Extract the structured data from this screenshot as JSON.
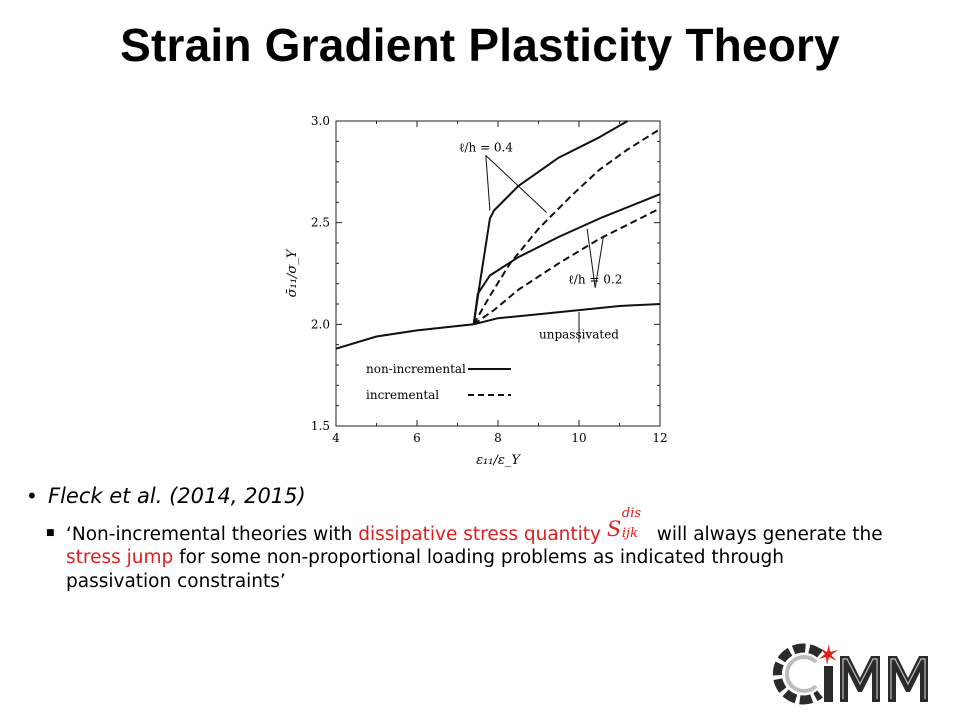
{
  "slide": {
    "title": "Strain Gradient Plasticity Theory"
  },
  "chart_data": {
    "type": "line",
    "xlabel": "ε₁₁/ε_Y",
    "ylabel": "σ̄₁₁/σ_Y",
    "xlim": [
      4,
      12
    ],
    "ylim": [
      1.5,
      3.0
    ],
    "xticks": [
      "4",
      "6",
      "8",
      "10",
      "12"
    ],
    "yticks": [
      "1.5",
      "2.0",
      "2.5",
      "3.0"
    ],
    "grid": false,
    "legend_position": "bottom-left",
    "legend": [
      {
        "label": "non-incremental",
        "style": "solid"
      },
      {
        "label": "incremental",
        "style": "dashed"
      }
    ],
    "series": [
      {
        "style": "solid",
        "points": [
          [
            4,
            1.88
          ],
          [
            5,
            1.94
          ],
          [
            6,
            1.97
          ],
          [
            7.4,
            2.0
          ],
          [
            8,
            2.03
          ],
          [
            9,
            2.05
          ],
          [
            10,
            2.07
          ],
          [
            11,
            2.09
          ],
          [
            12,
            2.1
          ]
        ]
      },
      {
        "style": "solid",
        "points": [
          [
            7.4,
            2.0
          ],
          [
            7.55,
            2.2
          ],
          [
            7.8,
            2.52
          ],
          [
            7.9,
            2.56
          ],
          [
            8.5,
            2.68
          ],
          [
            9.5,
            2.82
          ],
          [
            10.5,
            2.92
          ],
          [
            11.2,
            3.0
          ]
        ]
      },
      {
        "style": "solid",
        "points": [
          [
            7.4,
            2.0
          ],
          [
            7.5,
            2.15
          ],
          [
            7.8,
            2.24
          ],
          [
            8.5,
            2.33
          ],
          [
            9.5,
            2.43
          ],
          [
            10.5,
            2.52
          ],
          [
            11.5,
            2.6
          ],
          [
            12,
            2.64
          ]
        ]
      },
      {
        "style": "dashed",
        "points": [
          [
            7.4,
            2.0
          ],
          [
            7.8,
            2.14
          ],
          [
            8.3,
            2.3
          ],
          [
            9,
            2.47
          ],
          [
            9.8,
            2.63
          ],
          [
            10.5,
            2.76
          ],
          [
            11.2,
            2.86
          ],
          [
            12,
            2.96
          ]
        ]
      },
      {
        "style": "dashed",
        "points": [
          [
            7.4,
            2.0
          ],
          [
            7.9,
            2.07
          ],
          [
            8.5,
            2.17
          ],
          [
            9.5,
            2.3
          ],
          [
            10.5,
            2.42
          ],
          [
            11.5,
            2.52
          ],
          [
            12,
            2.57
          ]
        ]
      }
    ],
    "annotations": [
      {
        "text": "ℓ/h = 0.4",
        "points_to": [
          [
            7.8,
            2.56
          ],
          [
            9.2,
            2.55
          ]
        ],
        "label_at": [
          7.7,
          2.85
        ]
      },
      {
        "text": "ℓ/h = 0.2",
        "points_to": [
          [
            10.2,
            2.47
          ],
          [
            10.6,
            2.43
          ]
        ],
        "label_at": [
          10.4,
          2.2
        ]
      },
      {
        "text": "unpassivated",
        "points_to": [
          [
            10,
            2.06
          ]
        ],
        "label_at": [
          10,
          1.93
        ]
      }
    ]
  },
  "bullets": {
    "main": "Fleck et al. (2014, 2015)",
    "sub": {
      "text1": "‘Non-incremental theories with ",
      "red1": "dissipative stress quantity ",
      "math_base": "S",
      "math_sup": "dis",
      "math_sub": "ijk",
      "text2": " will always generate the ",
      "red2": "stress jump",
      "text3": " for some non-proportional loading problems as indicated through passivation constraints’"
    }
  },
  "logo": {
    "text": "CiMM",
    "color_dark": "#2b2b2b",
    "color_light": "#bdbdbd",
    "accent": "#e11d1d"
  }
}
